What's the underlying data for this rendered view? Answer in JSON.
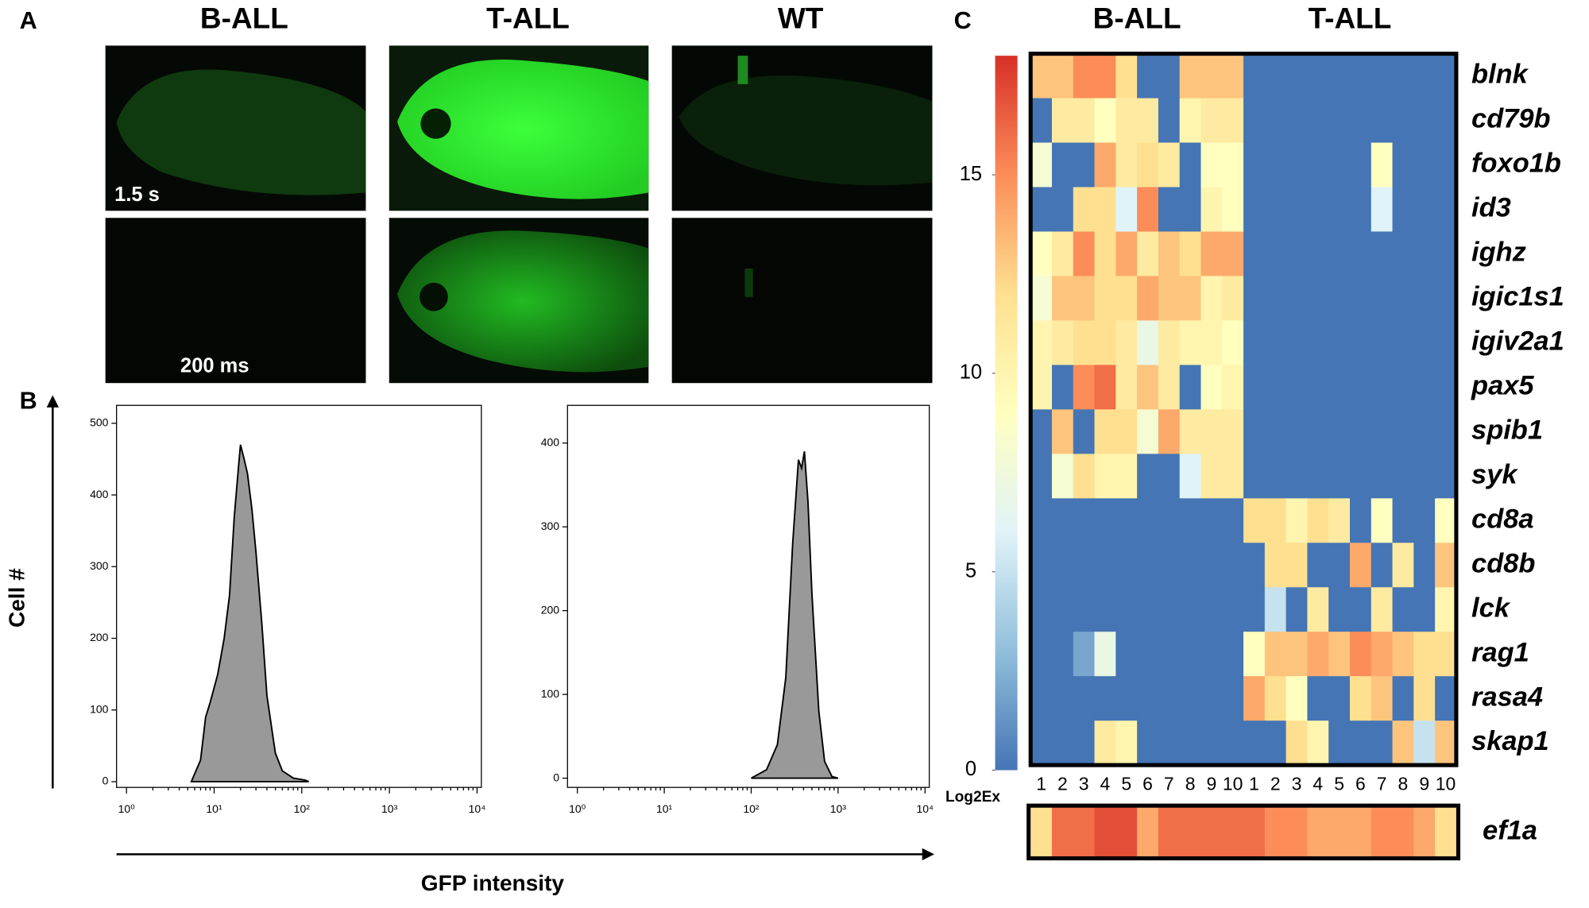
{
  "panels": [
    "A",
    "B",
    "C"
  ],
  "images": {
    "columns": [
      "B-ALL",
      "T-ALL",
      "WT"
    ],
    "exposures": [
      "1.5 s",
      "200 ms"
    ]
  },
  "shared_axes": {
    "y_label": "Cell #",
    "x_label": "GFP intensity"
  },
  "chart_data": [
    {
      "type": "area",
      "color": "#999999",
      "log_x": true,
      "x": [
        5.5,
        7,
        8,
        9,
        11,
        13,
        15,
        17,
        19,
        20,
        22,
        24,
        27,
        30,
        35,
        40,
        50,
        60,
        80,
        110,
        120
      ],
      "values": [
        0,
        30,
        90,
        110,
        150,
        200,
        260,
        370,
        440,
        470,
        450,
        430,
        380,
        320,
        220,
        120,
        40,
        15,
        5,
        2,
        0
      ],
      "xlim": [
        0.77,
        11200
      ],
      "ylim": [
        -8,
        525
      ],
      "xticks": [
        {
          "value": 1,
          "label": "10⁰"
        },
        {
          "value": 10,
          "label": "10¹"
        },
        {
          "value": 100,
          "label": "10²"
        },
        {
          "value": 1000,
          "label": "10³"
        },
        {
          "value": 10000,
          "label": "10⁴"
        }
      ],
      "yticks": [
        0,
        100,
        200,
        300,
        400,
        500
      ]
    },
    {
      "type": "area",
      "color": "#999999",
      "log_x": true,
      "x": [
        100,
        150,
        200,
        250,
        300,
        350,
        380,
        410,
        450,
        500,
        600,
        700,
        850,
        1000
      ],
      "values": [
        0,
        10,
        40,
        120,
        280,
        380,
        370,
        390,
        330,
        220,
        80,
        20,
        2,
        0
      ],
      "xlim": [
        0.77,
        11200
      ],
      "ylim": [
        -11,
        445
      ],
      "xticks": [
        {
          "value": 1,
          "label": "10⁰"
        },
        {
          "value": 10,
          "label": "10¹"
        },
        {
          "value": 100,
          "label": "10²"
        },
        {
          "value": 1000,
          "label": "10³"
        },
        {
          "value": 10000,
          "label": "10⁴"
        }
      ],
      "yticks": [
        0,
        100,
        200,
        300,
        400
      ]
    },
    {
      "type": "heatmap",
      "groups": [
        "B-ALL",
        "T-ALL"
      ],
      "x": [
        "1",
        "2",
        "3",
        "4",
        "5",
        "6",
        "7",
        "8",
        "9",
        "10",
        "1",
        "2",
        "3",
        "4",
        "5",
        "6",
        "7",
        "8",
        "9",
        "10"
      ],
      "rows": [
        "blnk",
        "cd79b",
        "foxo1b",
        "id3",
        "ighz",
        "igic1s1",
        "igiv2a1",
        "pax5",
        "spib1",
        "syk",
        "cd8a",
        "cd8b",
        "lck",
        "rag1",
        "rasa4",
        "skap1"
      ],
      "values": [
        [
          13,
          13,
          15,
          15,
          12,
          0,
          0,
          13,
          13,
          13,
          0,
          0,
          0,
          0,
          0,
          0,
          0,
          0,
          0,
          0
        ],
        [
          0,
          11,
          11,
          9,
          11,
          11,
          0,
          10,
          11,
          11,
          0,
          0,
          0,
          0,
          0,
          0,
          0,
          0,
          0,
          0
        ],
        [
          8,
          0,
          0,
          14,
          11,
          12,
          11,
          0,
          9,
          9,
          0,
          0,
          0,
          0,
          0,
          0,
          9,
          0,
          0,
          0
        ],
        [
          0,
          0,
          12,
          12,
          6,
          15,
          0,
          0,
          10,
          9,
          0,
          0,
          0,
          0,
          0,
          0,
          6,
          0,
          0,
          0
        ],
        [
          9,
          11,
          15,
          12,
          14,
          11,
          13,
          12,
          14,
          14,
          0,
          0,
          0,
          0,
          0,
          0,
          0,
          0,
          0,
          0
        ],
        [
          8,
          13,
          13,
          12,
          12,
          14,
          13,
          13,
          10,
          11,
          0,
          0,
          0,
          0,
          0,
          0,
          0,
          0,
          0,
          0
        ],
        [
          10,
          11,
          12,
          12,
          11,
          7,
          11,
          10,
          10,
          9,
          0,
          0,
          0,
          0,
          0,
          0,
          0,
          0,
          0,
          0
        ],
        [
          10,
          0,
          15,
          16,
          11,
          13,
          11,
          0,
          9,
          10,
          0,
          0,
          0,
          0,
          0,
          0,
          0,
          0,
          0,
          0
        ],
        [
          0,
          13,
          0,
          12,
          12,
          8,
          14,
          11,
          11,
          11,
          0,
          0,
          0,
          0,
          0,
          0,
          0,
          0,
          0,
          0
        ],
        [
          0,
          8,
          12,
          10,
          10,
          0,
          0,
          6,
          11,
          11,
          0,
          0,
          0,
          0,
          0,
          0,
          0,
          0,
          0,
          0
        ],
        [
          0,
          0,
          0,
          0,
          0,
          0,
          0,
          0,
          0,
          0,
          12,
          12,
          10,
          12,
          11,
          0,
          9,
          0,
          0,
          9
        ],
        [
          0,
          0,
          0,
          0,
          0,
          0,
          0,
          0,
          0,
          0,
          0,
          12,
          12,
          0,
          0,
          14,
          0,
          11,
          0,
          13
        ],
        [
          0,
          0,
          0,
          0,
          0,
          0,
          0,
          0,
          0,
          0,
          0,
          5,
          0,
          11,
          0,
          0,
          11,
          0,
          0,
          10
        ],
        [
          0,
          0,
          2,
          7,
          0,
          0,
          0,
          0,
          0,
          0,
          9,
          13,
          13,
          14,
          13,
          15,
          14,
          13,
          12,
          12
        ],
        [
          0,
          0,
          0,
          0,
          0,
          0,
          0,
          0,
          0,
          0,
          14,
          12,
          9,
          0,
          0,
          12,
          13,
          0,
          12,
          0
        ],
        [
          0,
          0,
          0,
          11,
          10,
          0,
          0,
          0,
          0,
          0,
          0,
          0,
          12,
          10,
          0,
          0,
          0,
          13,
          5,
          13
        ]
      ],
      "reference_row": {
        "name": "ef1a",
        "values": [
          12,
          16,
          16,
          17,
          17,
          14,
          16,
          16,
          16,
          16,
          16,
          15,
          15,
          14,
          14,
          14,
          15,
          15,
          14,
          12
        ]
      },
      "colorbar": {
        "label": "Log2Ex",
        "lim": [
          0,
          18
        ],
        "ticks": [
          0,
          5,
          10,
          15
        ]
      },
      "colormap": [
        "#4575b4",
        "#91bfdb",
        "#e0f3f8",
        "#ffffbf",
        "#fee090",
        "#fc8d59",
        "#d73027"
      ]
    }
  ]
}
